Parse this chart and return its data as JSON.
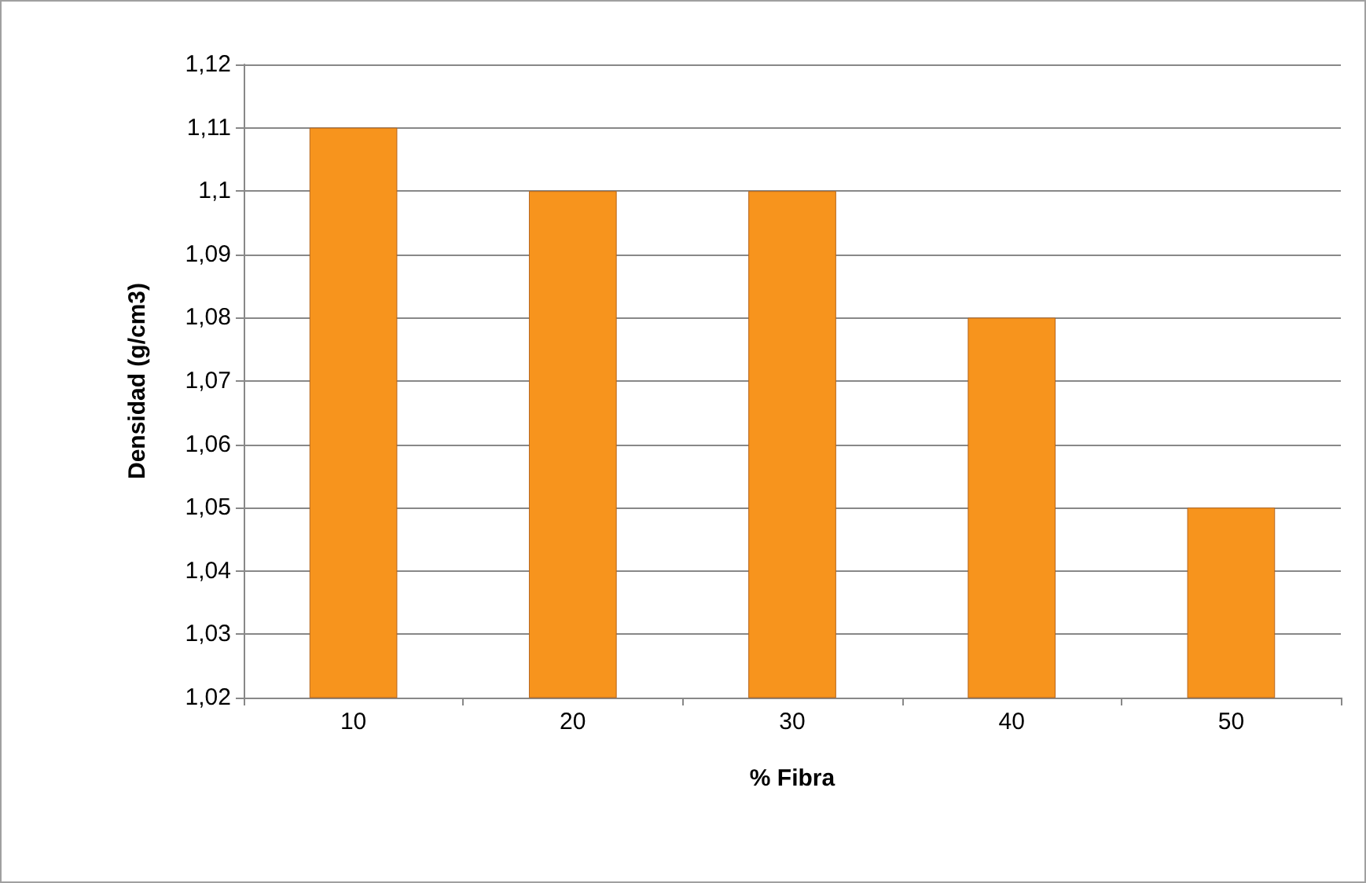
{
  "chart_data": {
    "type": "bar",
    "xlabel": "% Fibra",
    "ylabel": "Densidad (g/cm3)",
    "categories": [
      "10",
      "20",
      "30",
      "40",
      "50"
    ],
    "values": [
      1.11,
      1.1,
      1.1,
      1.08,
      1.05
    ],
    "color": "#f7941d",
    "ylim": [
      1.02,
      1.12
    ],
    "yticks": [
      {
        "value": 1.02,
        "label": "1,02"
      },
      {
        "value": 1.03,
        "label": "1,03"
      },
      {
        "value": 1.04,
        "label": "1,04"
      },
      {
        "value": 1.05,
        "label": "1,05"
      },
      {
        "value": 1.06,
        "label": "1,06"
      },
      {
        "value": 1.07,
        "label": "1,07"
      },
      {
        "value": 1.08,
        "label": "1,08"
      },
      {
        "value": 1.09,
        "label": "1,09"
      },
      {
        "value": 1.1,
        "label": "1,1"
      },
      {
        "value": 1.11,
        "label": "1,11"
      },
      {
        "value": 1.12,
        "label": "1,12"
      }
    ],
    "grid": "y"
  }
}
